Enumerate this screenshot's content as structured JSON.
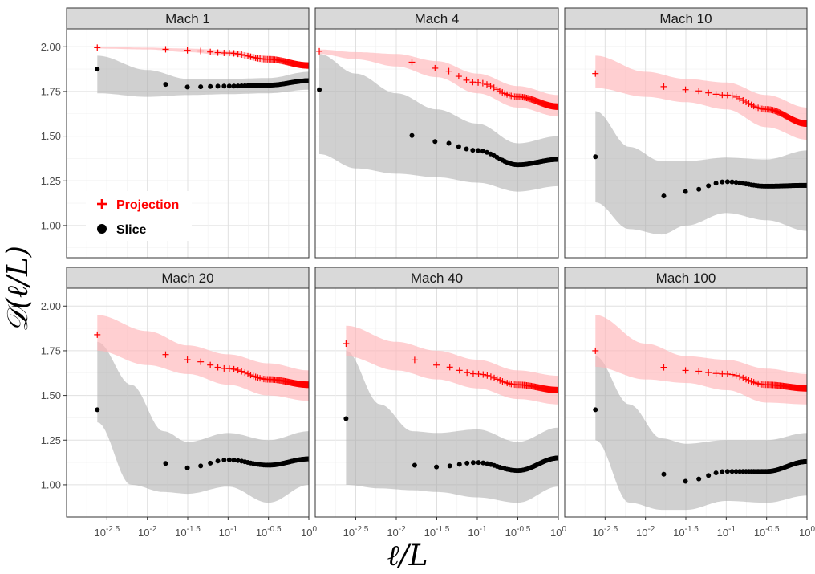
{
  "chart_data": {
    "type": "scatter",
    "xlabel": "ℓ/L",
    "ylabel": "𝒟(ℓ/L)",
    "x_scale": "log10",
    "xlim_log10": [
      -3.0,
      0.0
    ],
    "ylim": [
      0.82,
      2.1
    ],
    "x_ticks_log10": [
      -2.5,
      -2.0,
      -1.5,
      -1.0,
      -0.5,
      0.0
    ],
    "x_tick_base": "10",
    "x_tick_exponents": [
      "-2.5",
      "-2",
      "-1.5",
      "-1",
      "-0.5",
      "0"
    ],
    "y_ticks": [
      1.0,
      1.25,
      1.5,
      1.75,
      2.0
    ],
    "y_tick_labels": [
      "1.00",
      "1.25",
      "1.50",
      "1.75",
      "2.00"
    ],
    "grid": true,
    "legend": {
      "position": "inside top-left panel, lower-left",
      "entries": [
        {
          "label": "Projection",
          "marker": "+",
          "color": "#ff0000"
        },
        {
          "label": "Slice",
          "marker": "circle",
          "color": "#000000"
        }
      ]
    },
    "colors": {
      "projection": "#ff0000",
      "projection_band": "#ffb6b9",
      "slice": "#000000",
      "slice_band": "#a9a9a9"
    },
    "panels": [
      {
        "title": "Mach 1",
        "x_start_log10": -2.62,
        "series": [
          {
            "name": "Projection",
            "knots_x_log10": [
              -2.62,
              -2.0,
              -1.5,
              -1.0,
              -0.5,
              0.0
            ],
            "values": [
              1.995,
              1.99,
              1.98,
              1.965,
              1.93,
              1.895
            ],
            "band_lower": [
              1.99,
              1.985,
              1.97,
              1.95,
              1.91,
              1.88
            ],
            "band_upper": [
              2.0,
              1.995,
              1.99,
              1.98,
              1.95,
              1.91
            ]
          },
          {
            "name": "Slice",
            "knots_x_log10": [
              -2.62,
              -2.0,
              -1.5,
              -1.0,
              -0.5,
              0.0
            ],
            "values": [
              1.875,
              1.8,
              1.775,
              1.78,
              1.785,
              1.81
            ],
            "band_lower": [
              1.74,
              1.72,
              1.73,
              1.735,
              1.74,
              1.76
            ],
            "band_upper": [
              1.95,
              1.87,
              1.82,
              1.82,
              1.825,
              1.86
            ]
          }
        ]
      },
      {
        "title": "Mach 4",
        "x_start_log10": -2.95,
        "series": [
          {
            "name": "Projection",
            "knots_x_log10": [
              -2.95,
              -2.5,
              -2.0,
              -1.5,
              -1.0,
              -0.5,
              0.0
            ],
            "values": [
              1.975,
              1.955,
              1.93,
              1.88,
              1.8,
              1.72,
              1.665
            ],
            "band_lower": [
              1.96,
              1.93,
              1.89,
              1.83,
              1.74,
              1.66,
              1.61
            ],
            "band_upper": [
              1.985,
              1.97,
              1.96,
              1.92,
              1.85,
              1.78,
              1.73
            ]
          },
          {
            "name": "Slice",
            "knots_x_log10": [
              -2.95,
              -2.5,
              -2.0,
              -1.5,
              -1.0,
              -0.5,
              0.0
            ],
            "values": [
              1.76,
              1.6,
              1.52,
              1.47,
              1.42,
              1.34,
              1.37
            ],
            "band_lower": [
              1.4,
              1.32,
              1.29,
              1.27,
              1.24,
              1.19,
              1.22
            ],
            "band_upper": [
              1.96,
              1.85,
              1.74,
              1.65,
              1.57,
              1.46,
              1.5
            ]
          }
        ]
      },
      {
        "title": "Mach 10",
        "x_start_log10": -2.62,
        "series": [
          {
            "name": "Projection",
            "knots_x_log10": [
              -2.62,
              -2.0,
              -1.5,
              -1.0,
              -0.5,
              0.0
            ],
            "values": [
              1.85,
              1.79,
              1.76,
              1.73,
              1.65,
              1.57
            ],
            "band_lower": [
              1.77,
              1.72,
              1.69,
              1.65,
              1.55,
              1.48
            ],
            "band_upper": [
              1.95,
              1.86,
              1.82,
              1.8,
              1.73,
              1.66
            ]
          },
          {
            "name": "Slice",
            "knots_x_log10": [
              -2.62,
              -2.2,
              -1.8,
              -1.5,
              -1.0,
              -0.5,
              0.0
            ],
            "values": [
              1.385,
              1.22,
              1.165,
              1.19,
              1.245,
              1.22,
              1.225
            ],
            "band_lower": [
              1.13,
              0.98,
              0.95,
              1.0,
              1.07,
              1.03,
              0.97
            ],
            "band_upper": [
              1.64,
              1.44,
              1.36,
              1.36,
              1.38,
              1.37,
              1.42
            ]
          }
        ]
      },
      {
        "title": "Mach 20",
        "x_start_log10": -2.62,
        "series": [
          {
            "name": "Projection",
            "knots_x_log10": [
              -2.62,
              -2.0,
              -1.5,
              -1.0,
              -0.5,
              0.0
            ],
            "values": [
              1.84,
              1.75,
              1.7,
              1.65,
              1.59,
              1.56
            ],
            "band_lower": [
              1.75,
              1.67,
              1.62,
              1.56,
              1.5,
              1.47
            ],
            "band_upper": [
              1.95,
              1.86,
              1.78,
              1.73,
              1.68,
              1.64
            ]
          },
          {
            "name": "Slice",
            "knots_x_log10": [
              -2.62,
              -2.2,
              -1.8,
              -1.5,
              -1.0,
              -0.5,
              0.0
            ],
            "values": [
              1.42,
              1.2,
              1.12,
              1.095,
              1.14,
              1.11,
              1.145
            ],
            "band_lower": [
              1.35,
              1.0,
              0.96,
              0.95,
              0.99,
              0.9,
              1.0
            ],
            "band_upper": [
              1.8,
              1.56,
              1.3,
              1.24,
              1.29,
              1.25,
              1.3
            ]
          }
        ]
      },
      {
        "title": "Mach 40",
        "x_start_log10": -2.62,
        "series": [
          {
            "name": "Projection",
            "knots_x_log10": [
              -2.62,
              -2.0,
              -1.5,
              -1.0,
              -0.5,
              0.0
            ],
            "values": [
              1.79,
              1.72,
              1.67,
              1.62,
              1.56,
              1.53
            ],
            "band_lower": [
              1.72,
              1.64,
              1.59,
              1.54,
              1.48,
              1.45
            ],
            "band_upper": [
              1.89,
              1.8,
              1.75,
              1.7,
              1.64,
              1.61
            ]
          },
          {
            "name": "Slice",
            "knots_x_log10": [
              -2.62,
              -2.2,
              -1.8,
              -1.5,
              -1.0,
              -0.5,
              0.0
            ],
            "values": [
              1.37,
              1.17,
              1.11,
              1.1,
              1.125,
              1.08,
              1.15
            ],
            "band_lower": [
              1.0,
              0.98,
              0.97,
              0.96,
              0.93,
              0.9,
              0.99
            ],
            "band_upper": [
              1.75,
              1.45,
              1.3,
              1.29,
              1.31,
              1.24,
              1.32
            ]
          }
        ]
      },
      {
        "title": "Mach 100",
        "x_start_log10": -2.62,
        "series": [
          {
            "name": "Projection",
            "knots_x_log10": [
              -2.62,
              -2.0,
              -1.5,
              -1.0,
              -0.5,
              0.0
            ],
            "values": [
              1.75,
              1.67,
              1.64,
              1.62,
              1.56,
              1.54
            ],
            "band_lower": [
              1.66,
              1.59,
              1.57,
              1.53,
              1.46,
              1.45
            ],
            "band_upper": [
              1.95,
              1.79,
              1.72,
              1.7,
              1.65,
              1.62
            ]
          },
          {
            "name": "Slice",
            "knots_x_log10": [
              -2.62,
              -2.2,
              -1.8,
              -1.5,
              -1.0,
              -0.5,
              0.0
            ],
            "values": [
              1.42,
              1.2,
              1.06,
              1.02,
              1.075,
              1.075,
              1.13
            ],
            "band_lower": [
              1.25,
              0.9,
              0.86,
              0.86,
              0.91,
              0.9,
              0.94
            ],
            "band_upper": [
              1.72,
              1.45,
              1.26,
              1.23,
              1.25,
              1.25,
              1.29
            ]
          }
        ]
      }
    ]
  }
}
